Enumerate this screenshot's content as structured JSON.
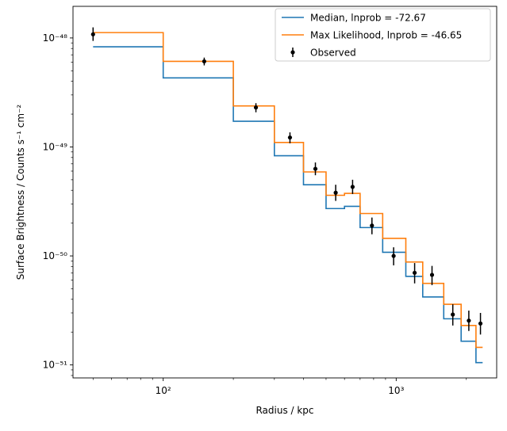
{
  "chart_data": {
    "type": "line",
    "xlabel": "Radius / kpc",
    "ylabel": "Surface Brightness / Counts s⁻¹ cm⁻²",
    "xscale": "log",
    "yscale": "log",
    "xlim": [
      41,
      2700
    ],
    "ylim": [
      7.6e-52,
      1.95e-48
    ],
    "xticks": [
      {
        "value": 100,
        "label": "10²"
      },
      {
        "value": 1000,
        "label": "10³"
      }
    ],
    "yticks": [
      {
        "value": 1e-51,
        "label": "10⁻⁵¹"
      },
      {
        "value": 1e-50,
        "label": "10⁻⁵⁰"
      },
      {
        "value": 1e-49,
        "label": "10⁻⁴⁹"
      },
      {
        "value": 1e-48,
        "label": "10⁻⁴⁸"
      }
    ],
    "legend": {
      "placement": "top-right"
    },
    "bin_edges": [
      50,
      100,
      200,
      300,
      400,
      500,
      600,
      700,
      875,
      1100,
      1300,
      1600,
      1900,
      2200,
      2350
    ],
    "series": [
      {
        "name": "Median, lnprob = -72.67",
        "color": "#1f77b4",
        "style": "step",
        "values": [
          8.3e-49,
          4.3e-49,
          1.72e-49,
          8.3e-50,
          4.5e-50,
          2.72e-50,
          2.85e-50,
          1.82e-50,
          1.08e-50,
          6.5e-51,
          4.2e-51,
          2.65e-51,
          1.65e-51,
          1.05e-51
        ]
      },
      {
        "name": "Max Likelihood, lnprob = -46.65",
        "color": "#ff7f0e",
        "style": "step",
        "values": [
          1.12e-48,
          6.1e-49,
          2.38e-49,
          1.1e-49,
          5.9e-50,
          3.6e-50,
          3.75e-50,
          2.45e-50,
          1.45e-50,
          8.8e-51,
          5.6e-51,
          3.6e-51,
          2.3e-51,
          1.45e-51
        ]
      }
    ],
    "observed": {
      "name": "Observed",
      "color": "#000000",
      "points": [
        {
          "x": 50,
          "y": 1.08e-48,
          "ylo": 9.4e-49,
          "yhi": 1.25e-48
        },
        {
          "x": 150,
          "y": 6.1e-49,
          "ylo": 5.6e-49,
          "yhi": 6.6e-49
        },
        {
          "x": 250,
          "y": 2.3e-49,
          "ylo": 2.08e-49,
          "yhi": 2.52e-49
        },
        {
          "x": 350,
          "y": 1.22e-49,
          "ylo": 1.08e-49,
          "yhi": 1.36e-49
        },
        {
          "x": 450,
          "y": 6.3e-50,
          "ylo": 5.5e-50,
          "yhi": 7.2e-50
        },
        {
          "x": 550,
          "y": 3.8e-50,
          "ylo": 3.2e-50,
          "yhi": 4.5e-50
        },
        {
          "x": 650,
          "y": 4.3e-50,
          "ylo": 3.7e-50,
          "yhi": 5e-50
        },
        {
          "x": 787,
          "y": 1.9e-50,
          "ylo": 1.58e-50,
          "yhi": 2.25e-50
        },
        {
          "x": 975,
          "y": 1e-50,
          "ylo": 8.2e-51,
          "yhi": 1.2e-50
        },
        {
          "x": 1200,
          "y": 7e-51,
          "ylo": 5.6e-51,
          "yhi": 8.6e-51
        },
        {
          "x": 1425,
          "y": 6.7e-51,
          "ylo": 5.4e-51,
          "yhi": 8.1e-51
        },
        {
          "x": 1750,
          "y": 2.9e-51,
          "ylo": 2.3e-51,
          "yhi": 3.6e-51
        },
        {
          "x": 2050,
          "y": 2.55e-51,
          "ylo": 2.05e-51,
          "yhi": 3.15e-51
        },
        {
          "x": 2300,
          "y": 2.4e-51,
          "ylo": 1.9e-51,
          "yhi": 3e-51
        }
      ]
    }
  }
}
